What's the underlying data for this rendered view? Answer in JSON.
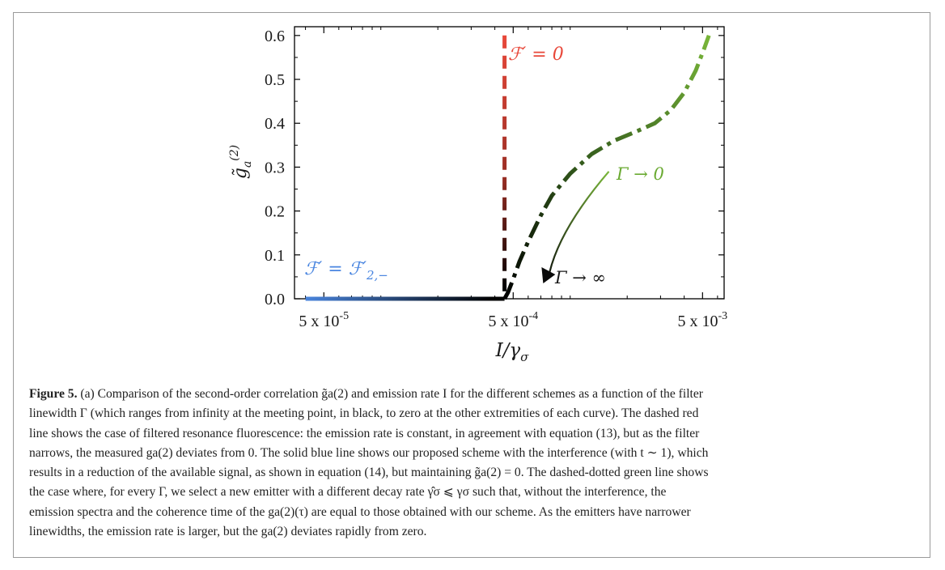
{
  "chart_data": {
    "type": "line",
    "xlabel": "I/γσ",
    "ylabel": "g̃a(2)",
    "xscale": "log",
    "xlim": [
      3.5e-05,
      0.0065
    ],
    "ylim": [
      0.0,
      0.62
    ],
    "x_ticks": [
      {
        "value": 5e-05,
        "label": "5 x 10-5",
        "base": "5 x 10",
        "exp": "-5"
      },
      {
        "value": 0.0005,
        "label": "5 x 10-4",
        "base": "5 x 10",
        "exp": "-4"
      },
      {
        "value": 0.005,
        "label": "5 x 10-3",
        "base": "5 x 10",
        "exp": "-3"
      }
    ],
    "y_ticks": [
      "0.0",
      "0.1",
      "0.2",
      "0.3",
      "0.4",
      "0.5",
      "0.6"
    ],
    "y_tick_values": [
      0.0,
      0.1,
      0.2,
      0.3,
      0.4,
      0.5,
      0.6
    ],
    "series": [
      {
        "name": "F′ = F′2,−",
        "style": "solid",
        "color_start": "#4a86e0",
        "color_end": "#000000",
        "x": [
          4e-05,
          7e-05,
          0.0001,
          0.00015,
          0.0002,
          0.0003,
          0.00045
        ],
        "y": [
          0.0,
          0.0,
          0.0,
          0.0,
          0.0,
          0.0,
          0.0
        ]
      },
      {
        "name": "F′ = 0",
        "style": "dashed",
        "color_start": "#e8483a",
        "color_end": "#000000",
        "x": [
          0.00045,
          0.00045,
          0.00045,
          0.00045,
          0.00045,
          0.00045,
          0.00045
        ],
        "y": [
          0.6,
          0.5,
          0.4,
          0.3,
          0.2,
          0.1,
          0.0
        ]
      },
      {
        "name": "Γ → 0",
        "style": "dashdot",
        "color_start": "#000000",
        "color_end": "#7ab83a",
        "x": [
          0.00045,
          0.00047,
          0.0005,
          0.00054,
          0.0006,
          0.0007,
          0.0008,
          0.001,
          0.0013,
          0.0017,
          0.0022,
          0.0028,
          0.0034,
          0.004,
          0.0046,
          0.0051,
          0.0054
        ],
        "y": [
          0.0,
          0.015,
          0.045,
          0.085,
          0.13,
          0.19,
          0.235,
          0.285,
          0.33,
          0.36,
          0.38,
          0.4,
          0.43,
          0.47,
          0.52,
          0.57,
          0.6
        ]
      }
    ],
    "annotations": [
      {
        "text": "F′ = 0",
        "x": 0.00052,
        "y": 0.57,
        "color": "#e8483a"
      },
      {
        "text": "Γ → 0",
        "x": 0.0017,
        "y": 0.28,
        "color": "#6aaa32"
      },
      {
        "text": "Γ → ∞",
        "x": 0.00088,
        "y": 0.03,
        "color": "#1a1a1a"
      },
      {
        "text": "F′ = F′2,−",
        "x": 4.1e-05,
        "y": 0.024,
        "color": "#4a86e0"
      }
    ],
    "arrow": {
      "from": [
        0.0016,
        0.29
      ],
      "to": [
        0.00072,
        0.035
      ],
      "color_start": "#7ab83a",
      "color_end": "#0a0a0a"
    },
    "grid": false,
    "legend": "none"
  },
  "caption": {
    "label": "Figure 5.",
    "lines": [
      "(a) Comparison of the second-order correlation g̃a(2) and emission rate I for the different schemes as a function of the filter",
      "linewidth Γ (which ranges from infinity at the meeting point, in black, to zero at the other extremities of each curve). The dashed red",
      "line shows the case of filtered resonance fluorescence: the emission rate is constant, in agreement with equation (13), but as the filter",
      "narrows, the measured ga(2) deviates from 0. The solid blue line shows our proposed scheme with the interference (with t ∼ 1), which",
      "results in a reduction of the available signal, as shown in equation (14), but maintaining g̃a(2) = 0. The dashed-dotted green line shows",
      "the case where, for every Γ, we select a new emitter with a different decay rate γ̂σ ⩽ γσ such that, without the interference, the",
      "emission spectra and the coherence time of the ga(2)(τ) are equal to those obtained with our scheme. As the emitters have narrower",
      "linewidths, the emission rate is larger, but the ga(2) deviates rapidly from zero."
    ],
    "refs": [
      "13",
      "14"
    ]
  }
}
